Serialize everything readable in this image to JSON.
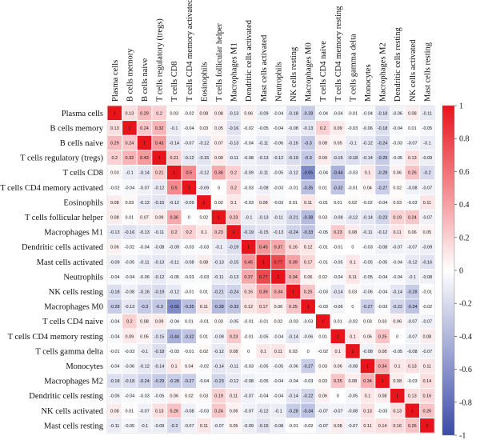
{
  "chart_data": {
    "type": "heatmap",
    "rows": [
      "Plasma cells",
      "B cells memory",
      "B cells naive",
      "T cells regulatory (tregs)",
      "T cells CD8",
      "T cells CD4 memory activated",
      "Eosinophils",
      "T cells follicular helper",
      "Macrophages M1",
      "Dendritic cells activated",
      "Mast cells activated",
      "Neutrophils",
      "NK cells resting",
      "Macrophages M0",
      "T cells CD4 naive",
      "T cells CD4 memory resting",
      "T cells gamma delta",
      "Monocytes",
      "Macrophages M2",
      "Dendritic cells resting",
      "NK cells activated",
      "Mast cells resting"
    ],
    "columns": [
      "Plasma cells",
      "B cells memory",
      "B cells naive",
      "T cells regulatory (tregs)",
      "T cells CD8",
      "T cells CD4 memory activated",
      "Eosinophils",
      "T cells follicular helper",
      "Macrophages M1",
      "Dendritic cells activated",
      "Mast cells activated",
      "Neutrophils",
      "NK cells resting",
      "Macrophages M0",
      "T cells CD4 naive",
      "T cells CD4 memory resting",
      "T cells gamma delta",
      "Monocytes",
      "Macrophages M2",
      "Dendritic cells resting",
      "NK cells activated",
      "Mast cells resting"
    ],
    "values": [
      [
        1,
        0.13,
        0.29,
        0.2,
        0.03,
        -0.02,
        0.08,
        0.08,
        -0.13,
        0.06,
        -0.09,
        -0.04,
        -0.18,
        -0.28,
        -0.04,
        -0.04,
        -0.01,
        -0.04,
        -0.18,
        -0.06,
        0.08,
        -0.11
      ],
      [
        0.13,
        1,
        0.24,
        0.32,
        -0.1,
        -0.04,
        0.03,
        0.05,
        -0.16,
        -0.02,
        -0.05,
        -0.04,
        -0.08,
        -0.13,
        0.2,
        0.09,
        -0.03,
        -0.06,
        -0.18,
        -0.04,
        0.01,
        -0.05
      ],
      [
        0.29,
        0.24,
        1,
        0.43,
        -0.14,
        -0.07,
        -0.12,
        0.07,
        -0.13,
        -0.04,
        -0.11,
        -0.06,
        -0.16,
        -0.3,
        0.08,
        0.05,
        -0.1,
        -0.12,
        -0.24,
        -0.03,
        -0.07,
        -0.1
      ],
      [
        0.2,
        0.32,
        0.43,
        1,
        0.21,
        -0.12,
        -0.15,
        0.09,
        -0.11,
        -0.08,
        -0.13,
        -0.12,
        -0.19,
        -0.3,
        0.09,
        -0.15,
        -0.18,
        -0.14,
        -0.29,
        -0.05,
        0.13,
        -0.09
      ],
      [
        0.03,
        -0.1,
        -0.14,
        0.21,
        1,
        0.5,
        -0.12,
        0.36,
        0.2,
        -0.09,
        -0.11,
        -0.05,
        -0.12,
        -0.65,
        -0.04,
        -0.44,
        -0.03,
        0.1,
        -0.28,
        0.06,
        0.26,
        -0.2
      ],
      [
        -0.02,
        -0.04,
        -0.07,
        -0.12,
        0.5,
        1,
        -0.09,
        0,
        0.2,
        -0.03,
        -0.08,
        -0.03,
        -0.01,
        -0.35,
        0.01,
        -0.32,
        -0.01,
        0.04,
        -0.27,
        0.02,
        -0.08,
        -0.07
      ],
      [
        0.08,
        0.03,
        -0.12,
        -0.15,
        -0.12,
        -0.09,
        1,
        0.02,
        0.1,
        -0.03,
        0.08,
        -0.03,
        0.01,
        0.11,
        -0.01,
        0.01,
        0.02,
        -0.02,
        -0.04,
        0.03,
        -0.03,
        0.11
      ],
      [
        0.08,
        0.01,
        0.07,
        0.09,
        0.36,
        0,
        0.02,
        1,
        0.23,
        -0.1,
        -0.13,
        -0.11,
        -0.21,
        -0.38,
        0.03,
        -0.08,
        -0.12,
        -0.14,
        -0.23,
        0.19,
        0.24,
        -0.07
      ],
      [
        -0.13,
        -0.16,
        -0.13,
        -0.11,
        0.2,
        0.2,
        0.1,
        0.23,
        1,
        -0.19,
        -0.15,
        -0.13,
        -0.24,
        -0.33,
        -0.05,
        0.23,
        0.08,
        -0.11,
        -0.12,
        0.11,
        0.06,
        0.05
      ],
      [
        0.06,
        -0.02,
        -0.04,
        -0.08,
        -0.09,
        -0.03,
        -0.03,
        -0.1,
        -0.19,
        1,
        0.45,
        0.37,
        0.16,
        0.12,
        -0.01,
        -0.01,
        0,
        -0.03,
        -0.08,
        -0.07,
        -0.07,
        -0.09
      ],
      [
        -0.09,
        -0.05,
        -0.11,
        -0.13,
        -0.11,
        -0.08,
        0.08,
        -0.13,
        -0.15,
        0.45,
        1,
        0.77,
        0.39,
        0.17,
        -0.01,
        -0.05,
        0.1,
        -0.05,
        -0.05,
        -0.04,
        -0.12,
        -0.16
      ],
      [
        -0.04,
        -0.04,
        -0.06,
        -0.12,
        -0.05,
        -0.03,
        -0.03,
        -0.11,
        -0.13,
        0.37,
        0.77,
        1,
        0.34,
        0.06,
        0.02,
        -0.04,
        0.11,
        -0.05,
        -0.04,
        -0.04,
        -0.1,
        -0.08
      ],
      [
        -0.18,
        -0.08,
        -0.16,
        -0.19,
        -0.12,
        -0.01,
        0.01,
        -0.21,
        -0.24,
        0.16,
        0.39,
        0.34,
        1,
        0.25,
        -0.03,
        -0.14,
        0.03,
        -0.06,
        -0.04,
        -0.14,
        -0.28,
        -0.01
      ],
      [
        -0.28,
        -0.13,
        -0.3,
        -0.3,
        -0.65,
        -0.35,
        0.11,
        -0.38,
        -0.33,
        0.12,
        0.17,
        0.06,
        0.25,
        1,
        -0.03,
        -0.06,
        0,
        -0.27,
        -0.03,
        -0.22,
        -0.34,
        -0.02
      ],
      [
        -0.04,
        0.2,
        0.08,
        0.09,
        -0.04,
        0.01,
        -0.01,
        0.03,
        -0.05,
        -0.01,
        -0.01,
        0.02,
        -0.03,
        -0.03,
        1,
        0.01,
        -0.02,
        0.03,
        0.03,
        0.06,
        -0.07,
        -0.07
      ],
      [
        -0.04,
        0.09,
        0.05,
        -0.15,
        -0.44,
        -0.32,
        0.01,
        -0.08,
        0.23,
        -0.01,
        -0.05,
        -0.04,
        -0.14,
        -0.06,
        0.01,
        1,
        0.1,
        0.06,
        0.25,
        0,
        -0.07,
        0.08
      ],
      [
        -0.01,
        -0.03,
        -0.1,
        -0.18,
        -0.03,
        -0.01,
        0.02,
        -0.12,
        0.08,
        0,
        0.1,
        0.11,
        0.03,
        0,
        -0.02,
        0.1,
        1,
        -0.08,
        0.08,
        -0.05,
        -0.08,
        -0.07
      ],
      [
        -0.04,
        -0.06,
        -0.12,
        -0.14,
        0.1,
        0.04,
        -0.02,
        -0.14,
        -0.11,
        -0.03,
        -0.05,
        -0.05,
        -0.06,
        -0.27,
        0.03,
        0.06,
        -0.08,
        1,
        0.34,
        0.1,
        0.13,
        0.11
      ],
      [
        -0.18,
        -0.18,
        -0.24,
        -0.29,
        -0.28,
        -0.27,
        -0.04,
        -0.23,
        -0.12,
        -0.08,
        -0.05,
        -0.04,
        -0.04,
        -0.03,
        0.03,
        0.25,
        0.08,
        0.34,
        1,
        0.08,
        -0.03,
        0.14
      ],
      [
        -0.06,
        -0.04,
        -0.03,
        -0.05,
        0.06,
        0.02,
        0.03,
        0.19,
        0.11,
        -0.07,
        -0.04,
        -0.04,
        -0.14,
        -0.22,
        0.06,
        0,
        -0.05,
        0.1,
        0.08,
        1,
        0.13,
        0.16
      ],
      [
        0.08,
        0.01,
        -0.07,
        0.13,
        0.26,
        -0.08,
        -0.03,
        0.24,
        0.06,
        -0.07,
        -0.12,
        -0.1,
        -0.28,
        -0.34,
        -0.07,
        -0.07,
        -0.08,
        0.13,
        -0.03,
        0.13,
        1,
        0.26
      ],
      [
        -0.11,
        -0.05,
        -0.1,
        -0.09,
        -0.2,
        -0.07,
        0.11,
        -0.07,
        0.05,
        -0.09,
        -0.16,
        -0.08,
        -0.01,
        -0.02,
        -0.07,
        0.08,
        -0.07,
        0.11,
        0.14,
        0.16,
        0.26,
        1
      ]
    ],
    "value_range": [
      -1,
      1
    ],
    "colorbar_ticks": [
      "1",
      "0.8",
      "0.6",
      "0.4",
      "0.2",
      "0",
      "-0.2",
      "-0.4",
      "-0.6",
      "-0.8",
      "-1"
    ],
    "colorscale": {
      "low": "#3b4ba8",
      "mid": "#ffffff",
      "high": "#e8141c"
    },
    "colorbar_position": "right"
  }
}
